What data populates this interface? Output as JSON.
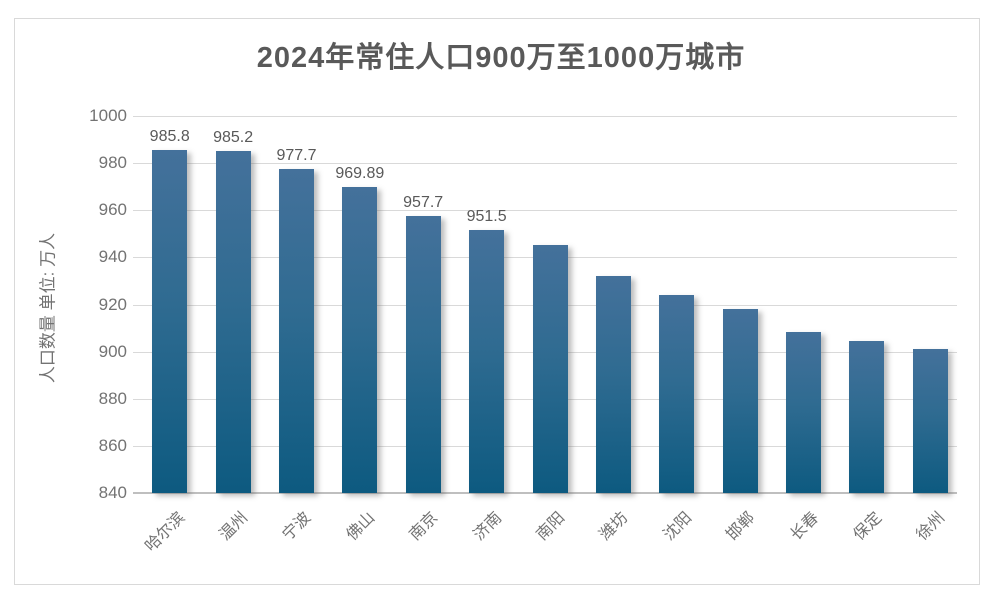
{
  "chart_data": {
    "type": "bar",
    "title": "2024年常住人口900万至1000万城市",
    "ylabel": "人口数量 单位: 万人",
    "xlabel": "",
    "categories": [
      "哈尔滨",
      "温州",
      "宁波",
      "佛山",
      "南京",
      "济南",
      "南阳",
      "潍坊",
      "沈阳",
      "邯郸",
      "长春",
      "保定",
      "徐州"
    ],
    "values": [
      985.8,
      985.2,
      977.7,
      969.89,
      957.7,
      951.5,
      945.3,
      932.0,
      924.1,
      918.3,
      908.4,
      904.5,
      901.1
    ],
    "data_labels": [
      "985.8",
      "985.2",
      "977.7",
      "969.89",
      "957.7",
      "951.5",
      "",
      "",
      "",
      "",
      "",
      "",
      ""
    ],
    "ylim": [
      840,
      1000
    ],
    "yticks": [
      840,
      860,
      880,
      900,
      920,
      940,
      960,
      980,
      1000
    ],
    "grid": true,
    "legend": "none",
    "colors": {
      "bar_top": "#44719b",
      "bar_bottom": "#0d5a80",
      "gridline": "#d9d9d9",
      "baseline": "#bfbfbf",
      "axis_text": "#737373",
      "title_text": "#595959",
      "data_label_text": "#595959",
      "frame_border": "#d9d9d9"
    }
  }
}
